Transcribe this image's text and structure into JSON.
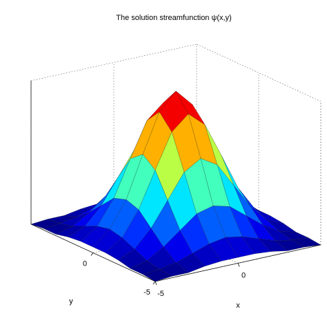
{
  "chart_data": {
    "type": "surface",
    "title": "The solution streamfunction  ψ(x,y)",
    "xlabel": "x",
    "ylabel": "y",
    "x": [
      -5,
      -4,
      -3,
      -2,
      -1,
      0,
      1,
      2,
      3,
      4,
      5
    ],
    "y": [
      -5,
      -4,
      -3,
      -2,
      -1,
      0,
      1,
      2,
      3,
      4,
      5
    ],
    "z": [
      [
        0.0,
        0.01,
        0.01,
        0.03,
        0.04,
        0.04,
        0.04,
        0.03,
        0.01,
        0.01,
        0.0
      ],
      [
        0.01,
        0.02,
        0.04,
        0.08,
        0.12,
        0.14,
        0.12,
        0.08,
        0.04,
        0.02,
        0.01
      ],
      [
        0.01,
        0.04,
        0.11,
        0.2,
        0.29,
        0.32,
        0.29,
        0.2,
        0.11,
        0.04,
        0.01
      ],
      [
        0.03,
        0.08,
        0.2,
        0.37,
        0.54,
        0.61,
        0.54,
        0.37,
        0.2,
        0.08,
        0.03
      ],
      [
        0.04,
        0.12,
        0.29,
        0.54,
        0.78,
        0.88,
        0.78,
        0.54,
        0.29,
        0.12,
        0.04
      ],
      [
        0.04,
        0.14,
        0.32,
        0.61,
        0.88,
        1.0,
        0.88,
        0.61,
        0.32,
        0.14,
        0.04
      ],
      [
        0.04,
        0.12,
        0.29,
        0.54,
        0.78,
        0.88,
        0.78,
        0.54,
        0.29,
        0.12,
        0.04
      ],
      [
        0.03,
        0.08,
        0.2,
        0.37,
        0.54,
        0.61,
        0.54,
        0.37,
        0.2,
        0.08,
        0.03
      ],
      [
        0.01,
        0.04,
        0.11,
        0.2,
        0.29,
        0.32,
        0.29,
        0.2,
        0.11,
        0.04,
        0.01
      ],
      [
        0.01,
        0.02,
        0.04,
        0.08,
        0.12,
        0.14,
        0.12,
        0.08,
        0.04,
        0.02,
        0.01
      ],
      [
        0.0,
        0.01,
        0.01,
        0.03,
        0.04,
        0.04,
        0.04,
        0.03,
        0.01,
        0.01,
        0.0
      ]
    ],
    "xlim": [
      -5,
      5
    ],
    "ylim": [
      -5,
      5
    ],
    "zlim": [
      0,
      1
    ],
    "xticks": [
      -5,
      0
    ],
    "yticks": [
      -5,
      0
    ],
    "colormap": "jet",
    "grid": true
  }
}
